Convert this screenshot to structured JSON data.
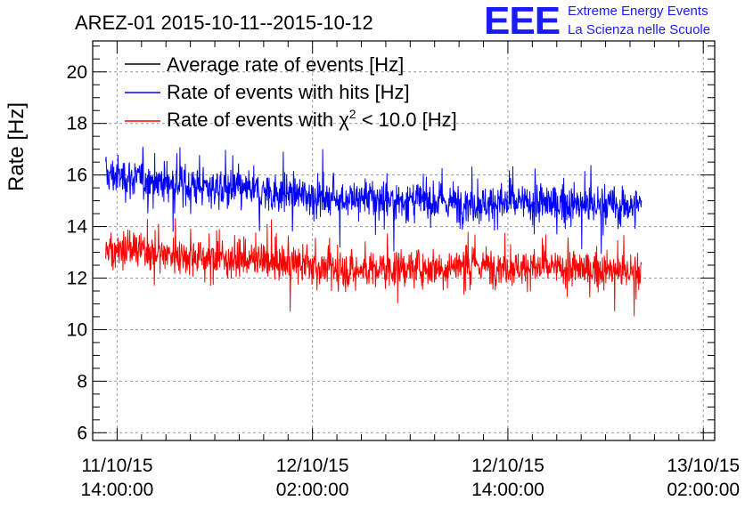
{
  "header": {
    "title": "AREZ-01 2015-10-11--2015-10-12",
    "logo_text": "EEE",
    "logo_line1": "Extreme Energy Events",
    "logo_line2": "La Scienza nelle Scuole"
  },
  "chart_data": {
    "type": "line",
    "title": "AREZ-01 2015-10-11--2015-10-12",
    "xlabel": "",
    "ylabel": "Rate [Hz]",
    "ylim": [
      5.7,
      21.2
    ],
    "xlim_hours": [
      -1.5,
      36.7
    ],
    "y_ticks": [
      6,
      8,
      10,
      12,
      14,
      16,
      18,
      20
    ],
    "x_ticks": [
      {
        "hour": 0,
        "line1": "11/10/15",
        "line2": "14:00:00"
      },
      {
        "hour": 12,
        "line1": "12/10/15",
        "line2": "02:00:00"
      },
      {
        "hour": 24,
        "line1": "12/10/15",
        "line2": "14:00:00"
      },
      {
        "hour": 36,
        "line1": "13/10/15",
        "line2": "02:00:00"
      }
    ],
    "grid": true,
    "legend_position": "top-left",
    "data_range_hours": [
      -0.7,
      32.2
    ],
    "series": [
      {
        "name": "Average rate of events [Hz]",
        "legend_label": "Average rate of events [Hz]",
        "color": "#000000",
        "values": []
      },
      {
        "name": "Rate of events with hits [Hz]",
        "legend_label": "Rate of events with hits [Hz]",
        "color": "#0000ff",
        "x": [
          -0.7,
          2,
          6,
          10,
          14,
          18,
          22,
          26,
          30,
          32.2
        ],
        "values": [
          16.0,
          15.8,
          15.5,
          15.3,
          15.1,
          15.0,
          14.9,
          14.9,
          14.8,
          14.8
        ],
        "noise": 0.55
      },
      {
        "name": "Rate of events with χ2 < 10.0 [Hz]",
        "legend_label_prefix": "Rate of events with ",
        "legend_symbol": "χ",
        "legend_sup": "2",
        "legend_label_suffix": " < 10.0 [Hz]",
        "color": "#ff0000",
        "x": [
          -0.7,
          2,
          6,
          10,
          14,
          18,
          22,
          26,
          30,
          32.2
        ],
        "values": [
          13.2,
          13.0,
          12.8,
          12.6,
          12.3,
          12.4,
          12.5,
          12.4,
          12.3,
          12.2
        ],
        "noise": 0.5
      }
    ]
  }
}
